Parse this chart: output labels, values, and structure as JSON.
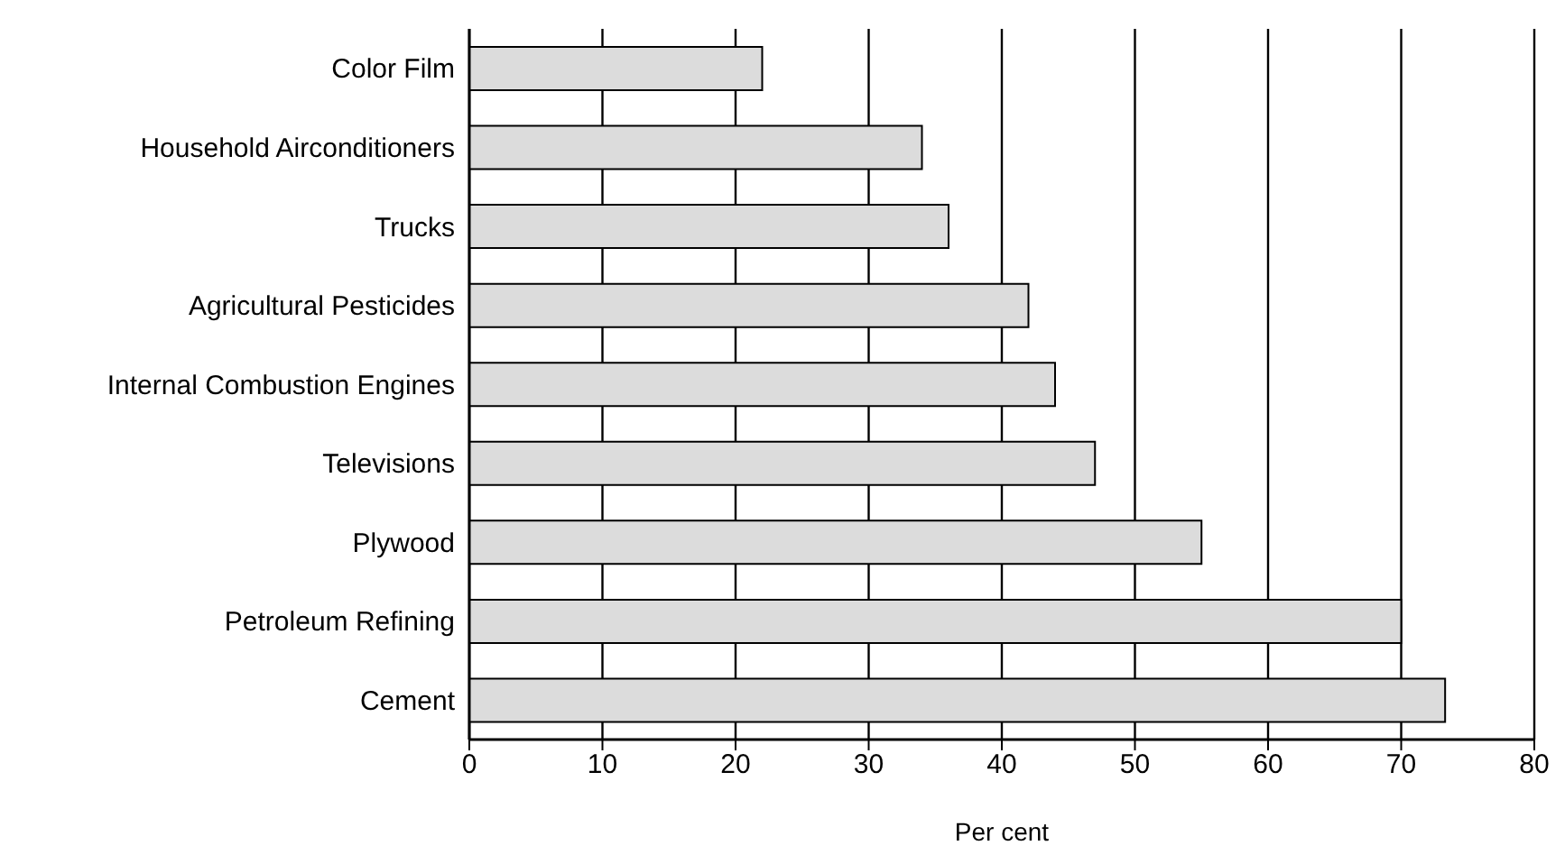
{
  "chart_data": {
    "type": "bar",
    "orientation": "horizontal",
    "xlabel": "Per cent",
    "categories": [
      "Color Film",
      "Household Airconditioners",
      "Trucks",
      "Agricultural Pesticides",
      "Internal Combustion Engines",
      "Televisions",
      "Plywood",
      "Petroleum Refining",
      "Cement"
    ],
    "values": [
      22,
      34,
      36,
      42,
      44,
      47,
      55,
      70,
      73.3
    ],
    "color": "#dcdcdc",
    "xlim": [
      0,
      80
    ],
    "xticks": [
      0,
      10,
      20,
      30,
      40,
      50,
      60,
      70,
      80
    ],
    "grid": "x"
  }
}
